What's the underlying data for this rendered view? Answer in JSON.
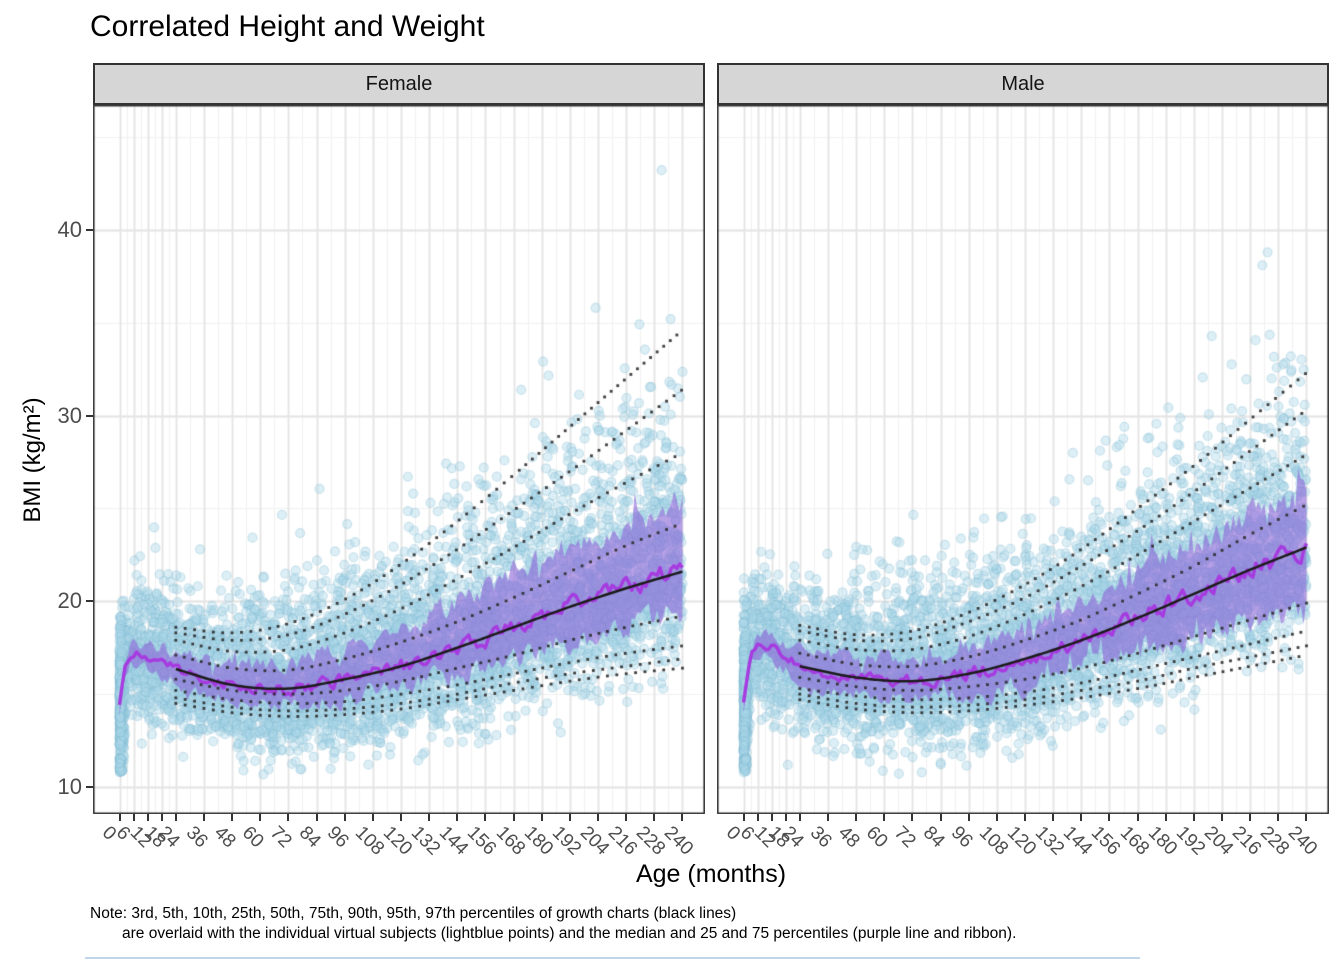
{
  "title": "Correlated Height and Weight",
  "note": {
    "line1": "Note: 3rd, 5th, 10th, 25th, 50th, 75th, 90th, 95th, 97th percentiles of growth charts (black lines)",
    "line2": "are overlaid with the individual virtual subjects (lightblue points) and the median and 25 and 75 percentiles (purple line and ribbon)."
  },
  "chart_data": {
    "type": "scatter",
    "title": "Correlated Height and Weight",
    "xlabel": "Age (months)",
    "ylabel": "BMI (kg/m²)",
    "legend_position": "none",
    "grid": true,
    "x_ticks": [
      0,
      6,
      12,
      18,
      24,
      36,
      48,
      60,
      72,
      84,
      96,
      108,
      120,
      132,
      144,
      156,
      168,
      180,
      192,
      204,
      216,
      228,
      240
    ],
    "x_minor": [
      3,
      9,
      15,
      21,
      30,
      42,
      54,
      66,
      78,
      90,
      102,
      114,
      126,
      138,
      150,
      162,
      174,
      186,
      198,
      210,
      222,
      234
    ],
    "y_ticks": [
      10,
      20,
      30,
      40
    ],
    "y_minor": [
      15,
      25,
      35,
      45
    ],
    "xlim": [
      -11.3,
      249.6
    ],
    "ylim": [
      8.6,
      46.7
    ],
    "percentile_labels": [
      "3rd",
      "5th",
      "10th",
      "25th",
      "50th",
      "75th",
      "90th",
      "95th",
      "97th"
    ],
    "colors": {
      "point_fill": "#aad7e8",
      "point_stroke": "#7eb8d1",
      "ribbon": "#8c68d8",
      "sim_median_line": "#a63be0",
      "p50_line": "#1b1b1b",
      "dotted_line": "#2a2a2a",
      "grid_major": "#e4e4e4",
      "grid_minor": "#f1f1f1",
      "panel_border": "#333333",
      "strip_bg": "#d6d6d6",
      "tick_text": "#4d4d4d"
    },
    "facets": [
      {
        "label": "Female",
        "growth_percentiles": {
          "ages": [
            24,
            48,
            72,
            96,
            120,
            144,
            168,
            192,
            216,
            240
          ],
          "p3": [
            14.5,
            14.0,
            13.8,
            13.9,
            14.2,
            14.7,
            15.2,
            15.7,
            16.1,
            16.4
          ],
          "p5": [
            14.8,
            14.3,
            14.1,
            14.2,
            14.5,
            15.0,
            15.6,
            16.1,
            16.5,
            16.9
          ],
          "p10": [
            15.2,
            14.7,
            14.5,
            14.6,
            15.0,
            15.5,
            16.1,
            16.7,
            17.2,
            17.6
          ],
          "p25": [
            15.8,
            15.2,
            15.0,
            15.2,
            15.7,
            16.4,
            17.1,
            17.9,
            18.6,
            19.2
          ],
          "p50": [
            16.35,
            15.5,
            15.3,
            15.8,
            16.5,
            17.5,
            18.6,
            19.7,
            20.7,
            21.6
          ],
          "p75": [
            17.1,
            16.4,
            16.3,
            16.9,
            17.8,
            18.9,
            20.2,
            21.6,
            23.0,
            24.2
          ],
          "p90": [
            17.9,
            17.3,
            17.4,
            18.3,
            19.6,
            21.2,
            22.9,
            24.7,
            26.4,
            28.0
          ],
          "p95": [
            18.3,
            17.9,
            18.2,
            19.3,
            20.9,
            22.8,
            24.9,
            27.0,
            29.2,
            31.4
          ],
          "p97": [
            18.6,
            18.3,
            18.8,
            20.1,
            22.0,
            24.3,
            26.8,
            29.4,
            32.0,
            34.6
          ]
        },
        "simulated": {
          "ages": [
            0,
            3,
            6,
            9,
            12,
            18,
            24,
            36,
            48,
            60,
            72,
            84,
            96,
            108,
            120,
            132,
            144,
            156,
            168,
            180,
            192,
            204,
            216,
            228,
            240
          ],
          "median": [
            14.4,
            16.6,
            17.2,
            17.1,
            17.0,
            16.7,
            16.35,
            15.85,
            15.5,
            15.35,
            15.3,
            15.5,
            15.8,
            16.1,
            16.5,
            17.0,
            17.5,
            18.0,
            18.6,
            19.15,
            19.7,
            20.2,
            20.7,
            21.2,
            21.7
          ],
          "q25_offset": [
            0.35,
            0.5,
            0.55,
            0.6,
            0.6,
            0.7,
            0.75,
            0.8,
            0.85,
            0.9,
            0.95,
            1.0,
            1.05,
            1.1,
            1.2,
            1.3,
            1.4,
            1.5,
            1.6,
            1.7,
            1.8,
            1.9,
            2.0,
            2.1,
            2.2
          ],
          "q75_offset": [
            0.4,
            0.55,
            0.6,
            0.65,
            0.7,
            0.8,
            0.9,
            1.0,
            1.1,
            1.2,
            1.3,
            1.45,
            1.6,
            1.8,
            2.0,
            2.2,
            2.4,
            2.6,
            2.8,
            3.0,
            3.2,
            3.3,
            3.45,
            3.55,
            3.6
          ]
        },
        "scatter": {
          "n": 5000,
          "seed": 7,
          "age0_column_n": 330,
          "sigma_low_start": 1.55,
          "sigma_low_end": 2.3,
          "sigma_high_start": 1.9,
          "sigma_high_end": 4.8,
          "tail_prob": 0.035,
          "tail_max_add": 11,
          "bmi_min": 10.1,
          "bmi_max": 46.5
        }
      },
      {
        "label": "Male",
        "growth_percentiles": {
          "ages": [
            24,
            48,
            72,
            96,
            120,
            144,
            168,
            192,
            216,
            240
          ],
          "p3": [
            14.7,
            14.2,
            14.0,
            14.1,
            14.4,
            14.8,
            15.3,
            15.9,
            16.5,
            17.1
          ],
          "p5": [
            15.0,
            14.5,
            14.3,
            14.4,
            14.7,
            15.2,
            15.7,
            16.4,
            17.0,
            17.6
          ],
          "p10": [
            15.3,
            14.9,
            14.7,
            14.8,
            15.1,
            15.6,
            16.3,
            17.0,
            17.7,
            18.4
          ],
          "p25": [
            15.9,
            15.4,
            15.2,
            15.4,
            15.8,
            16.4,
            17.2,
            18.1,
            19.0,
            19.9
          ],
          "p50": [
            16.5,
            15.9,
            15.7,
            16.1,
            16.9,
            17.9,
            19.1,
            20.4,
            21.7,
            22.9
          ],
          "p75": [
            17.2,
            16.6,
            16.5,
            17.0,
            17.9,
            19.0,
            20.4,
            21.9,
            23.6,
            25.2
          ],
          "p90": [
            17.9,
            17.4,
            17.4,
            18.1,
            19.3,
            20.8,
            22.5,
            24.3,
            26.1,
            27.9
          ],
          "p95": [
            18.4,
            17.9,
            18.0,
            18.9,
            20.2,
            21.9,
            23.8,
            25.9,
            28.1,
            30.3
          ],
          "p97": [
            18.7,
            18.2,
            18.4,
            19.4,
            20.9,
            22.8,
            25.0,
            27.3,
            29.8,
            32.3
          ]
        },
        "simulated": {
          "ages": [
            0,
            3,
            6,
            9,
            12,
            18,
            24,
            36,
            48,
            60,
            72,
            84,
            96,
            108,
            120,
            132,
            144,
            156,
            168,
            180,
            192,
            204,
            216,
            228,
            240
          ],
          "median": [
            14.6,
            16.9,
            17.6,
            17.65,
            17.5,
            17.0,
            16.6,
            16.1,
            15.9,
            15.75,
            15.7,
            15.85,
            16.1,
            16.45,
            16.85,
            17.35,
            17.9,
            18.5,
            19.1,
            19.75,
            20.4,
            21.05,
            21.7,
            22.3,
            22.85
          ],
          "q25_offset": [
            0.35,
            0.5,
            0.55,
            0.6,
            0.65,
            0.7,
            0.8,
            0.85,
            0.9,
            0.95,
            1.0,
            1.05,
            1.15,
            1.25,
            1.35,
            1.45,
            1.6,
            1.75,
            1.9,
            2.1,
            2.3,
            2.5,
            2.75,
            3.0,
            3.3
          ],
          "q75_offset": [
            0.4,
            0.55,
            0.6,
            0.65,
            0.7,
            0.8,
            0.9,
            1.0,
            1.1,
            1.15,
            1.25,
            1.35,
            1.5,
            1.65,
            1.8,
            1.95,
            2.1,
            2.3,
            2.5,
            2.65,
            2.8,
            2.9,
            2.95,
            3.0,
            3.0
          ]
        },
        "scatter": {
          "n": 5000,
          "seed": 13,
          "age0_column_n": 330,
          "sigma_low_start": 1.55,
          "sigma_low_end": 2.3,
          "sigma_high_start": 1.9,
          "sigma_high_end": 4.6,
          "tail_prob": 0.035,
          "tail_max_add": 9.5,
          "bmi_min": 10.0,
          "bmi_max": 42.0
        }
      }
    ]
  }
}
